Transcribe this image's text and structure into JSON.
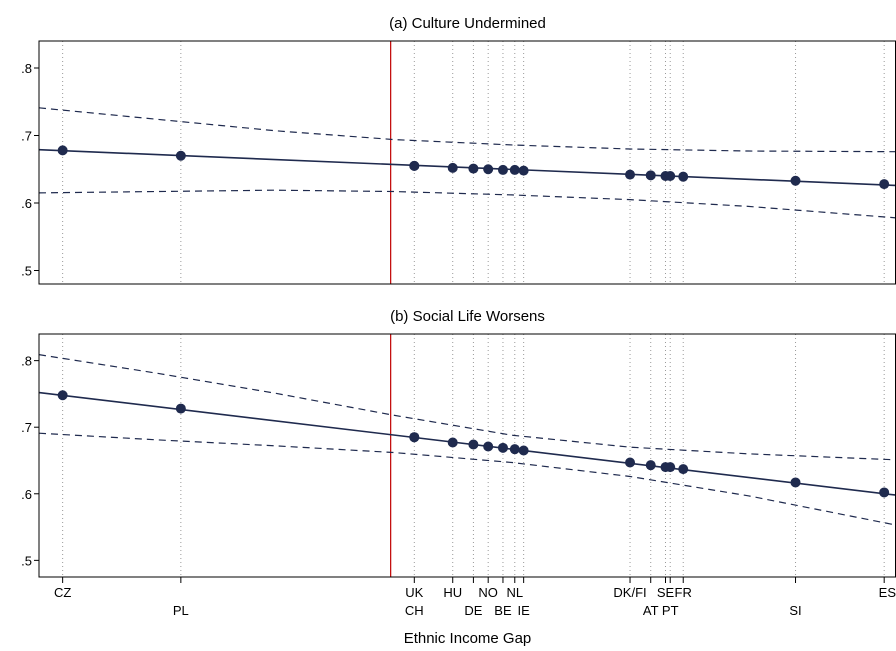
{
  "xlabel": "Ethnic Income Gap",
  "chart_data": [
    {
      "type": "line",
      "title": "(a) Culture Undermined",
      "ylim": [
        0.48,
        0.84
      ],
      "yticks": [
        ".5",
        ".6",
        ".7",
        ".8"
      ],
      "yvalues": [
        0.5,
        0.6,
        0.7,
        0.8
      ],
      "xlim": [
        0.0,
        14.5
      ],
      "countries": [
        {
          "label": "CZ",
          "x": 0.4,
          "y": 0.678
        },
        {
          "label": "PL",
          "x": 2.4,
          "y": 0.67
        },
        {
          "label": "UK",
          "x": 6.35,
          "y": 0.655
        },
        {
          "label": "CH",
          "x": 6.35,
          "y": 0.655
        },
        {
          "label": "HU",
          "x": 7.0,
          "y": 0.652
        },
        {
          "label": "DE",
          "x": 7.35,
          "y": 0.651
        },
        {
          "label": "NO",
          "x": 7.6,
          "y": 0.65
        },
        {
          "label": "BE",
          "x": 7.85,
          "y": 0.649
        },
        {
          "label": "NL",
          "x": 8.05,
          "y": 0.649
        },
        {
          "label": "IE",
          "x": 8.2,
          "y": 0.648
        },
        {
          "label": "DK/FI",
          "x": 10.0,
          "y": 0.642
        },
        {
          "label": "AT",
          "x": 10.35,
          "y": 0.641
        },
        {
          "label": "SE",
          "x": 10.6,
          "y": 0.64
        },
        {
          "label": "PT",
          "x": 10.68,
          "y": 0.64
        },
        {
          "label": "FR",
          "x": 10.9,
          "y": 0.639
        },
        {
          "label": "SI",
          "x": 12.8,
          "y": 0.633
        },
        {
          "label": "ES",
          "x": 14.3,
          "y": 0.628
        }
      ],
      "fit": {
        "x": [
          0.0,
          14.5
        ],
        "y": [
          0.679,
          0.626
        ]
      },
      "upper": {
        "x": [
          0,
          2,
          4,
          6,
          8,
          10,
          12,
          14.5
        ],
        "y": [
          0.741,
          0.724,
          0.707,
          0.694,
          0.686,
          0.68,
          0.677,
          0.676
        ]
      },
      "lower": {
        "x": [
          0,
          2,
          4,
          6,
          8,
          10,
          12,
          14.5
        ],
        "y": [
          0.615,
          0.617,
          0.619,
          0.617,
          0.612,
          0.605,
          0.595,
          0.578
        ]
      },
      "reference_x": 5.95
    },
    {
      "type": "line",
      "title": "(b) Social Life Worsens",
      "ylim": [
        0.475,
        0.84
      ],
      "yticks": [
        ".5",
        ".6",
        ".7",
        ".8"
      ],
      "yvalues": [
        0.5,
        0.6,
        0.7,
        0.8
      ],
      "xlim": [
        0.0,
        14.5
      ],
      "countries": [
        {
          "label": "CZ",
          "x": 0.4,
          "y": 0.748
        },
        {
          "label": "PL",
          "x": 2.4,
          "y": 0.728
        },
        {
          "label": "UK",
          "x": 6.35,
          "y": 0.685
        },
        {
          "label": "CH",
          "x": 6.35,
          "y": 0.685
        },
        {
          "label": "HU",
          "x": 7.0,
          "y": 0.677
        },
        {
          "label": "DE",
          "x": 7.35,
          "y": 0.674
        },
        {
          "label": "NO",
          "x": 7.6,
          "y": 0.671
        },
        {
          "label": "BE",
          "x": 7.85,
          "y": 0.669
        },
        {
          "label": "NL",
          "x": 8.05,
          "y": 0.667
        },
        {
          "label": "IE",
          "x": 8.2,
          "y": 0.665
        },
        {
          "label": "DK/FI",
          "x": 10.0,
          "y": 0.647
        },
        {
          "label": "AT",
          "x": 10.35,
          "y": 0.643
        },
        {
          "label": "SE",
          "x": 10.6,
          "y": 0.64
        },
        {
          "label": "PT",
          "x": 10.68,
          "y": 0.64
        },
        {
          "label": "FR",
          "x": 10.9,
          "y": 0.637
        },
        {
          "label": "SI",
          "x": 12.8,
          "y": 0.617
        },
        {
          "label": "ES",
          "x": 14.3,
          "y": 0.602
        }
      ],
      "fit": {
        "x": [
          0.0,
          14.5
        ],
        "y": [
          0.752,
          0.598
        ]
      },
      "upper": {
        "x": [
          0,
          2,
          4,
          6,
          8,
          10,
          12,
          14.5
        ],
        "y": [
          0.809,
          0.781,
          0.751,
          0.718,
          0.688,
          0.67,
          0.66,
          0.651
        ]
      },
      "lower": {
        "x": [
          0,
          2,
          4,
          6,
          8,
          10,
          12,
          14.5
        ],
        "y": [
          0.691,
          0.681,
          0.672,
          0.662,
          0.647,
          0.626,
          0.597,
          0.553
        ]
      },
      "reference_x": 5.95
    }
  ],
  "xaxis_labels": [
    {
      "label": "CZ",
      "x": 0.4,
      "row": 1
    },
    {
      "label": "PL",
      "x": 2.4,
      "row": 2
    },
    {
      "label": "UK",
      "x": 6.35,
      "row": 1
    },
    {
      "label": "CH",
      "x": 6.35,
      "row": 2
    },
    {
      "label": "HU",
      "x": 7.0,
      "row": 1
    },
    {
      "label": "DE",
      "x": 7.35,
      "row": 2
    },
    {
      "label": "NO",
      "x": 7.6,
      "row": 1
    },
    {
      "label": "BE",
      "x": 7.85,
      "row": 2
    },
    {
      "label": "NL",
      "x": 8.05,
      "row": 1
    },
    {
      "label": "IE",
      "x": 8.2,
      "row": 2
    },
    {
      "label": "DK/FI",
      "x": 10.0,
      "row": 1
    },
    {
      "label": "AT",
      "x": 10.35,
      "row": 2
    },
    {
      "label": "SE",
      "x": 10.6,
      "row": 1
    },
    {
      "label": "PT",
      "x": 10.68,
      "row": 2
    },
    {
      "label": "FR",
      "x": 10.9,
      "row": 1
    },
    {
      "label": "SI",
      "x": 12.8,
      "row": 2
    },
    {
      "label": "ES",
      "x": 14.3,
      "row": 1
    }
  ],
  "colors": {
    "series": "#1f2a4e",
    "reference_line": "#c00000",
    "gridline": "#9a9a9a",
    "frame": "#000000"
  }
}
